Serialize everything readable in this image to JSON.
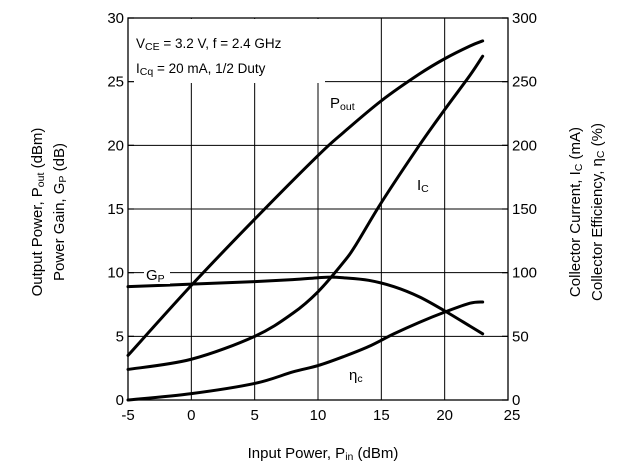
{
  "chart_data": {
    "type": "line",
    "x_ticks": [
      "-5",
      "0",
      "5",
      "10",
      "15",
      "20",
      "25"
    ],
    "y_left_ticks": [
      "0",
      "5",
      "10",
      "15",
      "20",
      "25",
      "30"
    ],
    "y_right_ticks": [
      "0",
      "50",
      "100",
      "150",
      "200",
      "250",
      "300"
    ],
    "xlim": [
      -5,
      25
    ],
    "ylim_left": [
      0,
      30
    ],
    "ylim_right": [
      0,
      300
    ],
    "grid": true,
    "xlabel": {
      "main": "Input Power, P",
      "sub": "in",
      "unit": " (dBm)"
    },
    "ylabel_left": {
      "line1": {
        "main": "Output Power, P",
        "sub": "out",
        "unit": " (dBm)"
      },
      "line2": "Power Gain, G",
      "line2_sub": "P",
      "line2_unit": " (dB)"
    },
    "ylabel_right": {
      "line1": {
        "main": "Collector Current, I",
        "sub": "C",
        "unit": " (mA)"
      },
      "line2": "Collector Efficiency, η",
      "line2_sub": "C",
      "line2_unit": " (%)"
    },
    "conditions": [
      {
        "a": "V",
        "a_sub": "CE",
        "rest": " = 3.2 V, f = 2.4 GHz"
      },
      {
        "a": "I",
        "a_sub": "Cq",
        "rest": " = 20 mA, 1/2 Duty"
      }
    ],
    "series": [
      {
        "name": "Pout",
        "label_main": "P",
        "label_sub": "out",
        "axis": "left",
        "x": [
          -5,
          0,
          5,
          10,
          12,
          15,
          18,
          20,
          22,
          23
        ],
        "y": [
          3.5,
          9,
          14.2,
          19.2,
          21,
          23.5,
          25.6,
          26.8,
          27.8,
          28.2
        ]
      },
      {
        "name": "Gp",
        "label_main": "G",
        "label_sub": "P",
        "axis": "left",
        "x": [
          -5,
          0,
          5,
          8,
          10,
          11,
          12,
          14,
          16,
          18,
          20,
          22,
          23
        ],
        "y": [
          8.9,
          9.1,
          9.3,
          9.45,
          9.6,
          9.65,
          9.6,
          9.4,
          8.9,
          8.1,
          7,
          5.8,
          5.2
        ]
      },
      {
        "name": "Ic",
        "label_main": "I",
        "label_sub": "C",
        "axis": "right",
        "x": [
          -5,
          0,
          5,
          8,
          10,
          12,
          13,
          15,
          18,
          20,
          22,
          23
        ],
        "y": [
          24,
          32,
          50,
          68,
          85,
          108,
          122,
          155,
          200,
          228,
          255,
          270
        ]
      },
      {
        "name": "eta_c",
        "label_main": "η",
        "label_sub": "c",
        "axis": "right",
        "x": [
          -5,
          0,
          5,
          8,
          10,
          12,
          14,
          16,
          18,
          20,
          22,
          23
        ],
        "y": [
          0,
          5,
          13,
          22,
          27,
          34,
          42,
          52,
          61,
          69,
          76,
          77
        ]
      }
    ]
  }
}
